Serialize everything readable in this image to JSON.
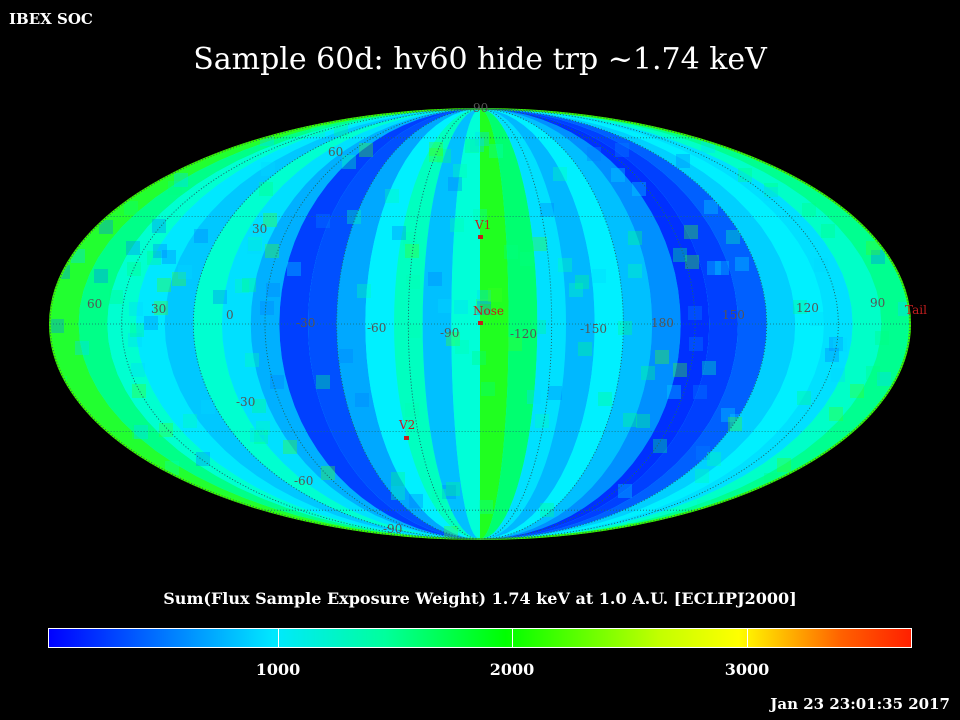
{
  "header": {
    "org": "IBEX SOC",
    "title": "Sample 60d: hv60 hide trp ~1.74 keV"
  },
  "map": {
    "longitude_labels": [
      "60",
      "30",
      "0",
      "-30",
      "-60",
      "-90",
      "-120",
      "-150",
      "180",
      "150",
      "120",
      "90"
    ],
    "latitude_labels_north": [
      "90",
      "60",
      "30"
    ],
    "latitude_labels_south": [
      "-30",
      "-60",
      "-90"
    ],
    "markers": [
      {
        "label": "V1",
        "color": "#c41e1e"
      },
      {
        "label": "Nose",
        "color": "#c41e1e"
      },
      {
        "label": "V2",
        "color": "#c41e1e"
      },
      {
        "label": "Tail",
        "color": "#c41e1e"
      }
    ]
  },
  "colorbar": {
    "label": "Sum(Flux Sample Exposure Weight)  1.74 keV at 1.0 A.U. [ECLIPJ2000]",
    "ticks": [
      "1000",
      "2000",
      "3000"
    ],
    "colors": [
      "#0000ff",
      "#00e8ff",
      "#00ff9c",
      "#00ff00",
      "#ffff00",
      "#ff2000"
    ]
  },
  "footer": {
    "timestamp": "Jan 23 23:01:35 2017"
  }
}
